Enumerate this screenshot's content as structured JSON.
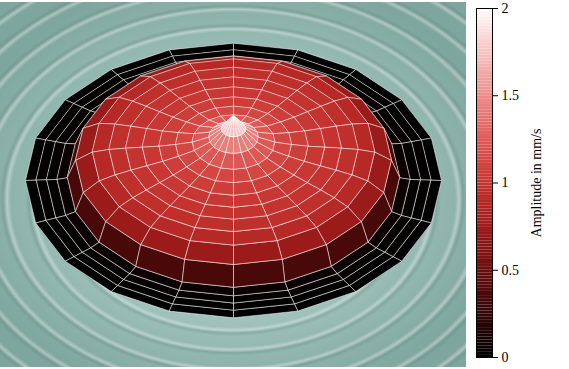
{
  "chart_data": {
    "type": "surface",
    "radius": [
      0,
      0.06,
      0.12,
      0.2,
      0.28,
      0.36,
      0.44,
      0.52,
      0.6,
      0.68,
      0.76,
      0.8,
      0.85,
      0.9,
      0.95,
      1.0
    ],
    "amplitude": [
      1.95,
      1.55,
      1.3,
      1.15,
      1.08,
      1.03,
      1.0,
      0.97,
      0.93,
      0.85,
      0.6,
      0.08,
      0.03,
      0.02,
      0.01,
      0
    ],
    "spokes": 20,
    "colorbar": {
      "label": "Amplitude in mm/s",
      "range": [
        0,
        2
      ],
      "ticks": [
        0,
        0.5,
        1,
        1.5,
        2
      ]
    }
  }
}
